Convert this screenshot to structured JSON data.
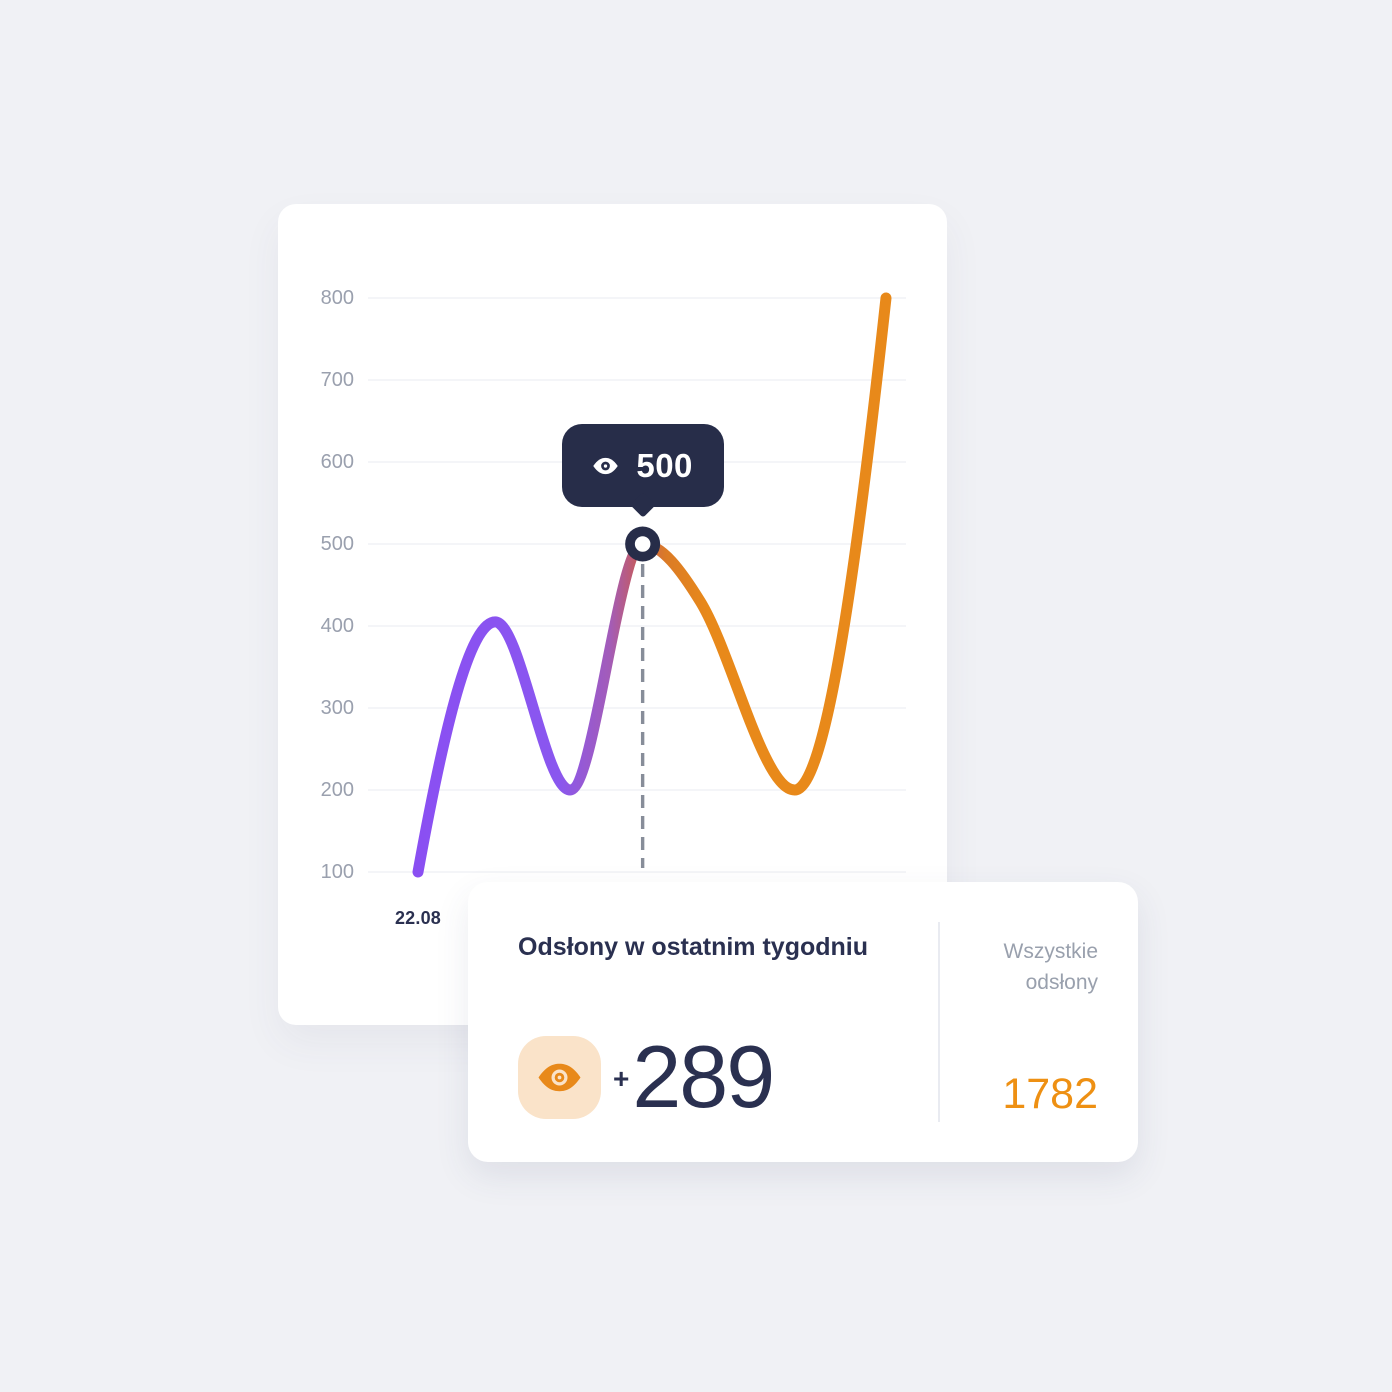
{
  "palette": {
    "background": "#f0f1f5",
    "card": "#ffffff",
    "navy": "#2a3050",
    "tooltip_bg": "#272d49",
    "gray_text": "#9aa0ae",
    "divider": "#e9ebf1",
    "gridline": "#f4f5f8",
    "dash_gray": "#878d99",
    "peach": "#fae3c9",
    "accent_orange": "#ee9013",
    "line_purple": "#8a4ff2",
    "line_rose": "#c55b5e",
    "line_orange": "#e8891a",
    "line_gradient": [
      {
        "offset": "0%",
        "color": "#8a4ff2"
      },
      {
        "offset": "30%",
        "color": "#8a57ef"
      },
      {
        "offset": "41%",
        "color": "#a35cb8"
      },
      {
        "offset": "47%",
        "color": "#c55b5e"
      },
      {
        "offset": "53%",
        "color": "#db7b26"
      },
      {
        "offset": "62%",
        "color": "#e8891a"
      },
      {
        "offset": "100%",
        "color": "#e8891a"
      }
    ]
  },
  "chart_data": {
    "type": "line",
    "title": "",
    "ylabel": "",
    "xlabel": "",
    "ylim": [
      100,
      800
    ],
    "grid": "horizontal",
    "legend": "none",
    "y_ticks": [
      "800",
      "700",
      "600",
      "500",
      "400",
      "300",
      "200",
      "100"
    ],
    "x_tick_labels": [
      "22.08"
    ],
    "series_name": "Odsłony",
    "points": [
      {
        "x": 0,
        "value": 100,
        "end": true
      },
      {
        "x": 0.165,
        "value": 405,
        "extremum": true
      },
      {
        "x": 0.325,
        "value": 200,
        "extremum": true
      },
      {
        "x": 0.48,
        "value": 500,
        "extremum": true,
        "highlighted": true
      },
      {
        "x": 0.603,
        "value": 430
      },
      {
        "x": 0.805,
        "value": 200,
        "extremum": true
      },
      {
        "x": 1,
        "value": 800,
        "end": true
      }
    ],
    "highlighted_point": {
      "value": 500,
      "date": "22.08"
    }
  },
  "tooltip": {
    "icon": "eye-icon",
    "value": "500"
  },
  "stats": {
    "title": "Odsłony w ostatnim tygodniu",
    "icon": "eye-icon",
    "delta_plus": "+",
    "delta_value": "289",
    "total_label": "Wszystkie odsłony",
    "total_value": "1782"
  }
}
